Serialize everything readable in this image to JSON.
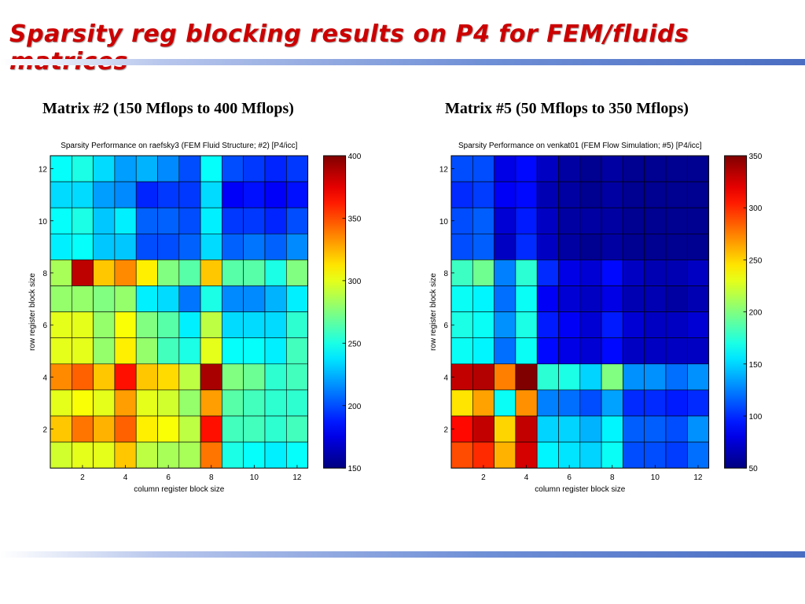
{
  "slide": {
    "title": "Sparsity reg blocking results on P4 for FEM/fluids matrices",
    "title_color": "#cc0000",
    "left_subtitle": "Matrix #2 (150 Mflops to 400 Mflops)",
    "right_subtitle": "Matrix #5 (50 Mflops to 350 Mflops)"
  },
  "chart_data": [
    {
      "type": "heatmap",
      "title": "Sparsity Performance on raefsky3 (FEM Fluid Structure; #2) [P4/icc]",
      "xlabel": "column register block size",
      "ylabel": "row register block size",
      "x": [
        1,
        2,
        3,
        4,
        5,
        6,
        7,
        8,
        9,
        10,
        11,
        12
      ],
      "y": [
        1,
        2,
        3,
        4,
        5,
        6,
        7,
        8,
        9,
        10,
        11,
        12
      ],
      "xticks": [
        2,
        4,
        6,
        8,
        10,
        12
      ],
      "yticks": [
        2,
        4,
        6,
        8,
        10,
        12
      ],
      "colorbar_ticks": [
        150,
        200,
        250,
        300,
        350,
        400
      ],
      "colorbar_range": [
        150,
        400
      ],
      "colormap": "jet",
      "z_rows_top_to_bottom": [
        [
          245,
          250,
          235,
          220,
          225,
          215,
          200,
          245,
          200,
          195,
          190,
          195
        ],
        [
          235,
          235,
          220,
          215,
          190,
          195,
          195,
          235,
          180,
          185,
          180,
          185
        ],
        [
          245,
          250,
          230,
          240,
          205,
          205,
          200,
          240,
          195,
          195,
          190,
          200
        ],
        [
          240,
          245,
          230,
          230,
          200,
          200,
          205,
          235,
          205,
          210,
          205,
          215
        ],
        [
          285,
          385,
          320,
          335,
          310,
          275,
          265,
          320,
          265,
          265,
          250,
          275
        ],
        [
          280,
          280,
          275,
          280,
          240,
          235,
          210,
          250,
          215,
          215,
          225,
          240
        ],
        [
          300,
          300,
          280,
          305,
          275,
          265,
          240,
          290,
          235,
          235,
          235,
          255
        ],
        [
          300,
          300,
          280,
          310,
          280,
          260,
          250,
          300,
          245,
          245,
          240,
          260
        ],
        [
          335,
          345,
          320,
          365,
          320,
          315,
          290,
          390,
          275,
          270,
          255,
          260
        ],
        [
          300,
          305,
          300,
          330,
          300,
          295,
          280,
          330,
          265,
          260,
          255,
          255
        ],
        [
          320,
          340,
          325,
          345,
          310,
          305,
          290,
          365,
          260,
          260,
          255,
          260
        ],
        [
          295,
          300,
          300,
          320,
          290,
          285,
          285,
          340,
          250,
          245,
          240,
          245
        ]
      ]
    },
    {
      "type": "heatmap",
      "title": "Sparsity Performance on venkat01 (FEM Flow Simulation; #5) [P4/icc]",
      "xlabel": "column register block size",
      "ylabel": "row register block size",
      "x": [
        1,
        2,
        3,
        4,
        5,
        6,
        7,
        8,
        9,
        10,
        11,
        12
      ],
      "y": [
        1,
        2,
        3,
        4,
        5,
        6,
        7,
        8,
        9,
        10,
        11,
        12
      ],
      "xticks": [
        2,
        4,
        6,
        8,
        10,
        12
      ],
      "yticks": [
        2,
        4,
        6,
        8,
        10,
        12
      ],
      "colorbar_ticks": [
        50,
        100,
        150,
        200,
        250,
        300,
        350
      ],
      "colorbar_range": [
        50,
        350
      ],
      "colormap": "jet",
      "z_rows_top_to_bottom": [
        [
          110,
          110,
          80,
          90,
          70,
          60,
          55,
          60,
          55,
          55,
          55,
          55
        ],
        [
          100,
          105,
          85,
          90,
          65,
          60,
          55,
          60,
          55,
          55,
          55,
          55
        ],
        [
          110,
          115,
          75,
          95,
          70,
          60,
          60,
          60,
          55,
          55,
          55,
          55
        ],
        [
          110,
          115,
          70,
          100,
          70,
          60,
          55,
          60,
          55,
          55,
          55,
          55
        ],
        [
          180,
          195,
          125,
          175,
          100,
          80,
          75,
          90,
          70,
          65,
          65,
          70
        ],
        [
          165,
          160,
          120,
          165,
          85,
          75,
          70,
          80,
          65,
          65,
          60,
          65
        ],
        [
          170,
          165,
          130,
          170,
          95,
          85,
          75,
          95,
          75,
          70,
          70,
          75
        ],
        [
          165,
          160,
          120,
          165,
          90,
          80,
          75,
          90,
          70,
          70,
          70,
          70
        ],
        [
          330,
          335,
          275,
          350,
          175,
          170,
          150,
          200,
          130,
          130,
          120,
          130
        ],
        [
          245,
          265,
          165,
          270,
          125,
          120,
          110,
          135,
          100,
          100,
          95,
          100
        ],
        [
          310,
          330,
          250,
          330,
          150,
          150,
          140,
          160,
          115,
          115,
          110,
          130
        ],
        [
          290,
          300,
          260,
          325,
          160,
          155,
          150,
          165,
          110,
          110,
          105,
          120
        ]
      ]
    }
  ]
}
